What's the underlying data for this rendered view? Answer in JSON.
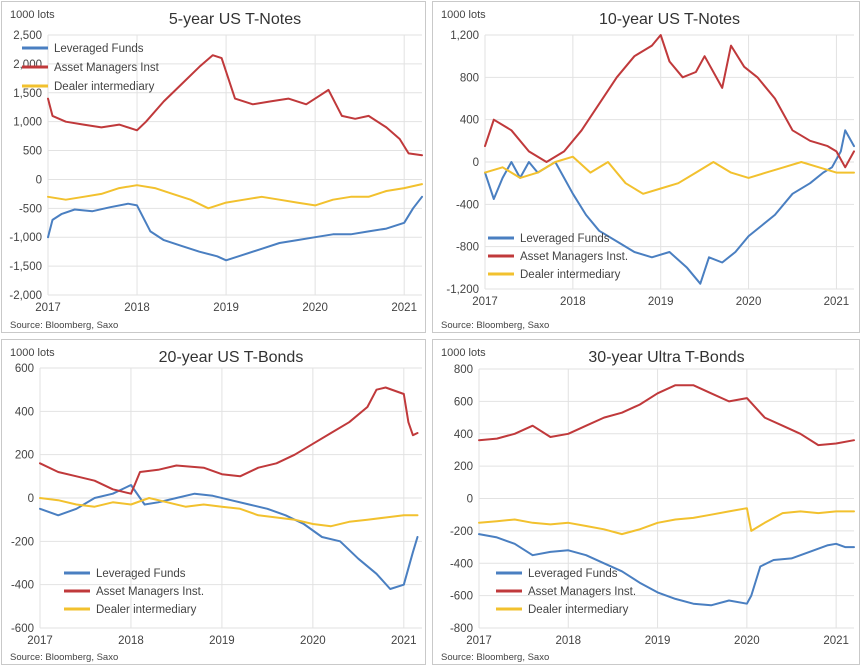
{
  "colors": {
    "leveraged": "#4a7fc1",
    "asset": "#c0393b",
    "dealer": "#f2c12e"
  },
  "chart_data": [
    {
      "type": "line",
      "title": "5-year US T-Notes",
      "ylabel": "1000 lots",
      "source": "Source: Bloomberg, Saxo",
      "ylim": [
        -2000,
        2500
      ],
      "yticks": [
        2500,
        2000,
        1500,
        1000,
        500,
        0,
        -500,
        -1000,
        -1500,
        -2000
      ],
      "ytick_labels": [
        "2,500",
        "2,000",
        "1,500",
        "1,000",
        "500",
        "0",
        "-500",
        "-1,000",
        "-1,500",
        "-2,000"
      ],
      "xlim": [
        2017,
        2021.2
      ],
      "xticks": [
        2017,
        2018,
        2019,
        2020,
        2021
      ],
      "xtick_labels": [
        "2017",
        "2018",
        "2019",
        "2020",
        "2021"
      ],
      "legend_position": "top-left",
      "series": [
        {
          "name": "Leveraged Funds",
          "color_key": "leveraged",
          "x": [
            2017.0,
            2017.05,
            2017.15,
            2017.3,
            2017.5,
            2017.7,
            2017.9,
            2018.0,
            2018.15,
            2018.3,
            2018.5,
            2018.7,
            2018.9,
            2019.0,
            2019.2,
            2019.4,
            2019.6,
            2019.8,
            2020.0,
            2020.2,
            2020.4,
            2020.6,
            2020.8,
            2021.0,
            2021.1,
            2021.2
          ],
          "y": [
            -1000,
            -700,
            -600,
            -520,
            -550,
            -480,
            -420,
            -450,
            -900,
            -1050,
            -1150,
            -1250,
            -1330,
            -1400,
            -1300,
            -1200,
            -1100,
            -1050,
            -1000,
            -950,
            -950,
            -900,
            -850,
            -750,
            -500,
            -300
          ]
        },
        {
          "name": "Asset Managers Inst",
          "color_key": "asset",
          "x": [
            2017.0,
            2017.05,
            2017.2,
            2017.4,
            2017.6,
            2017.8,
            2018.0,
            2018.1,
            2018.3,
            2018.5,
            2018.7,
            2018.85,
            2018.95,
            2019.1,
            2019.3,
            2019.5,
            2019.7,
            2019.9,
            2020.05,
            2020.15,
            2020.3,
            2020.45,
            2020.6,
            2020.8,
            2020.95,
            2021.05,
            2021.2
          ],
          "y": [
            1400,
            1100,
            1000,
            950,
            900,
            950,
            850,
            1000,
            1350,
            1650,
            1950,
            2150,
            2100,
            1400,
            1300,
            1350,
            1400,
            1300,
            1450,
            1550,
            1100,
            1050,
            1100,
            900,
            700,
            450,
            420
          ]
        },
        {
          "name": "Dealer intermediary",
          "color_key": "dealer",
          "x": [
            2017.0,
            2017.2,
            2017.4,
            2017.6,
            2017.8,
            2018.0,
            2018.2,
            2018.4,
            2018.6,
            2018.8,
            2019.0,
            2019.2,
            2019.4,
            2019.6,
            2019.8,
            2020.0,
            2020.2,
            2020.4,
            2020.6,
            2020.8,
            2021.0,
            2021.2
          ],
          "y": [
            -300,
            -350,
            -300,
            -250,
            -150,
            -100,
            -150,
            -250,
            -350,
            -500,
            -400,
            -350,
            -300,
            -350,
            -400,
            -450,
            -350,
            -300,
            -300,
            -200,
            -150,
            -80
          ]
        }
      ]
    },
    {
      "type": "line",
      "title": "10-year US T-Notes",
      "ylabel": "1000 lots",
      "source": "Source: Bloomberg, Saxo",
      "ylim": [
        -1200,
        1200
      ],
      "yticks": [
        1200,
        800,
        400,
        0,
        -400,
        -800,
        -1200
      ],
      "ytick_labels": [
        "1,200",
        "800",
        "400",
        "0",
        "-400",
        "-800",
        "-1,200"
      ],
      "xlim": [
        2017,
        2021.2
      ],
      "xticks": [
        2017,
        2018,
        2019,
        2020,
        2021
      ],
      "xtick_labels": [
        "2017",
        "2018",
        "2019",
        "2020",
        "2021"
      ],
      "legend_position": "bottom-center",
      "series": [
        {
          "name": "Leveraged Funds",
          "color_key": "leveraged",
          "x": [
            2017.0,
            2017.1,
            2017.2,
            2017.3,
            2017.4,
            2017.5,
            2017.6,
            2017.7,
            2017.8,
            2017.9,
            2018.0,
            2018.15,
            2018.3,
            2018.5,
            2018.7,
            2018.9,
            2019.1,
            2019.3,
            2019.45,
            2019.55,
            2019.7,
            2019.85,
            2020.0,
            2020.15,
            2020.3,
            2020.5,
            2020.7,
            2020.85,
            2020.95,
            2021.05,
            2021.1,
            2021.2
          ],
          "y": [
            -100,
            -350,
            -150,
            0,
            -150,
            0,
            -100,
            -50,
            0,
            -150,
            -300,
            -500,
            -650,
            -750,
            -850,
            -900,
            -850,
            -1000,
            -1150,
            -900,
            -950,
            -850,
            -700,
            -600,
            -500,
            -300,
            -200,
            -100,
            -50,
            100,
            300,
            150
          ]
        },
        {
          "name": "Asset Managers Inst.",
          "color_key": "asset",
          "x": [
            2017.0,
            2017.1,
            2017.3,
            2017.5,
            2017.7,
            2017.9,
            2018.1,
            2018.3,
            2018.5,
            2018.7,
            2018.9,
            2019.0,
            2019.1,
            2019.25,
            2019.4,
            2019.5,
            2019.7,
            2019.8,
            2019.95,
            2020.1,
            2020.3,
            2020.5,
            2020.7,
            2020.9,
            2021.0,
            2021.1,
            2021.2
          ],
          "y": [
            150,
            400,
            300,
            100,
            0,
            100,
            300,
            550,
            800,
            1000,
            1100,
            1200,
            950,
            800,
            850,
            1000,
            700,
            1100,
            900,
            800,
            600,
            300,
            200,
            150,
            100,
            -50,
            100
          ]
        },
        {
          "name": "Dealer intermediary",
          "color_key": "dealer",
          "x": [
            2017.0,
            2017.2,
            2017.4,
            2017.6,
            2017.8,
            2018.0,
            2018.2,
            2018.4,
            2018.6,
            2018.8,
            2019.0,
            2019.2,
            2019.4,
            2019.6,
            2019.8,
            2020.0,
            2020.2,
            2020.4,
            2020.6,
            2020.8,
            2021.0,
            2021.2
          ],
          "y": [
            -100,
            -50,
            -150,
            -100,
            0,
            50,
            -100,
            0,
            -200,
            -300,
            -250,
            -200,
            -100,
            0,
            -100,
            -150,
            -100,
            -50,
            0,
            -50,
            -100,
            -100
          ]
        }
      ]
    },
    {
      "type": "line",
      "title": "20-year US T-Bonds",
      "ylabel": "1000 lots",
      "source": "Source: Bloomberg, Saxo",
      "ylim": [
        -600,
        600
      ],
      "yticks": [
        600,
        400,
        200,
        0,
        -200,
        -400,
        -600
      ],
      "ytick_labels": [
        "600",
        "400",
        "200",
        "0",
        "-200",
        "-400",
        "-600"
      ],
      "xlim": [
        2017,
        2021.2
      ],
      "xticks": [
        2017,
        2018,
        2019,
        2020,
        2021
      ],
      "xtick_labels": [
        "2017",
        "2018",
        "2019",
        "2020",
        "2021"
      ],
      "legend_position": "bottom-center",
      "series": [
        {
          "name": "Leveraged Funds",
          "color_key": "leveraged",
          "x": [
            2017.0,
            2017.2,
            2017.4,
            2017.6,
            2017.8,
            2018.0,
            2018.15,
            2018.3,
            2018.5,
            2018.7,
            2018.9,
            2019.1,
            2019.3,
            2019.5,
            2019.7,
            2019.9,
            2020.1,
            2020.3,
            2020.5,
            2020.7,
            2020.85,
            2021.0,
            2021.1,
            2021.15
          ],
          "y": [
            -50,
            -80,
            -50,
            0,
            20,
            60,
            -30,
            -20,
            0,
            20,
            10,
            -10,
            -30,
            -50,
            -80,
            -120,
            -180,
            -200,
            -280,
            -350,
            -420,
            -400,
            -250,
            -180
          ]
        },
        {
          "name": "Asset Managers Inst.",
          "color_key": "asset",
          "x": [
            2017.0,
            2017.2,
            2017.4,
            2017.6,
            2017.8,
            2018.0,
            2018.1,
            2018.3,
            2018.5,
            2018.8,
            2019.0,
            2019.2,
            2019.4,
            2019.6,
            2019.8,
            2020.0,
            2020.2,
            2020.4,
            2020.6,
            2020.7,
            2020.8,
            2021.0,
            2021.05,
            2021.1,
            2021.15
          ],
          "y": [
            160,
            120,
            100,
            80,
            40,
            20,
            120,
            130,
            150,
            140,
            110,
            100,
            140,
            160,
            200,
            250,
            300,
            350,
            420,
            500,
            510,
            480,
            350,
            290,
            300
          ]
        },
        {
          "name": "Dealer intermediary",
          "color_key": "dealer",
          "x": [
            2017.0,
            2017.2,
            2017.4,
            2017.6,
            2017.8,
            2018.0,
            2018.2,
            2018.4,
            2018.6,
            2018.8,
            2019.0,
            2019.2,
            2019.4,
            2019.6,
            2019.8,
            2020.0,
            2020.2,
            2020.4,
            2020.6,
            2020.8,
            2021.0,
            2021.15
          ],
          "y": [
            0,
            -10,
            -30,
            -40,
            -20,
            -30,
            0,
            -20,
            -40,
            -30,
            -40,
            -50,
            -80,
            -90,
            -100,
            -120,
            -130,
            -110,
            -100,
            -90,
            -80,
            -80
          ]
        }
      ]
    },
    {
      "type": "line",
      "title": "30-year Ultra T-Bonds",
      "ylabel": "1000 lots",
      "source": "Source: Bloomberg, Saxo",
      "ylim": [
        -800,
        800
      ],
      "yticks": [
        800,
        600,
        400,
        200,
        0,
        -200,
        -400,
        -600,
        -800
      ],
      "ytick_labels": [
        "800",
        "600",
        "400",
        "200",
        "0",
        "-200",
        "-400",
        "-600",
        "-800"
      ],
      "xlim": [
        2017,
        2021.2
      ],
      "xticks": [
        2017,
        2018,
        2019,
        2020,
        2021
      ],
      "xtick_labels": [
        "2017",
        "2018",
        "2019",
        "2020",
        "2021"
      ],
      "legend_position": "bottom-center",
      "series": [
        {
          "name": "Leveraged Funds",
          "color_key": "leveraged",
          "x": [
            2017.0,
            2017.2,
            2017.4,
            2017.6,
            2017.8,
            2018.0,
            2018.2,
            2018.4,
            2018.6,
            2018.8,
            2019.0,
            2019.2,
            2019.4,
            2019.6,
            2019.8,
            2020.0,
            2020.05,
            2020.15,
            2020.3,
            2020.5,
            2020.7,
            2020.9,
            2021.0,
            2021.1,
            2021.2
          ],
          "y": [
            -220,
            -240,
            -280,
            -350,
            -330,
            -320,
            -350,
            -400,
            -450,
            -520,
            -580,
            -620,
            -650,
            -660,
            -630,
            -650,
            -600,
            -420,
            -380,
            -370,
            -330,
            -290,
            -280,
            -300,
            -300
          ]
        },
        {
          "name": "Asset Managers Inst.",
          "color_key": "asset",
          "x": [
            2017.0,
            2017.2,
            2017.4,
            2017.6,
            2017.8,
            2018.0,
            2018.2,
            2018.4,
            2018.6,
            2018.8,
            2019.0,
            2019.2,
            2019.4,
            2019.6,
            2019.8,
            2020.0,
            2020.2,
            2020.4,
            2020.6,
            2020.8,
            2021.0,
            2021.2
          ],
          "y": [
            360,
            370,
            400,
            450,
            380,
            400,
            450,
            500,
            530,
            580,
            650,
            700,
            700,
            650,
            600,
            620,
            500,
            450,
            400,
            330,
            340,
            360
          ]
        },
        {
          "name": "Dealer intermediary",
          "color_key": "dealer",
          "x": [
            2017.0,
            2017.2,
            2017.4,
            2017.6,
            2017.8,
            2018.0,
            2018.2,
            2018.4,
            2018.6,
            2018.8,
            2019.0,
            2019.2,
            2019.4,
            2019.6,
            2019.8,
            2020.0,
            2020.05,
            2020.2,
            2020.4,
            2020.6,
            2020.8,
            2021.0,
            2021.2
          ],
          "y": [
            -150,
            -140,
            -130,
            -150,
            -160,
            -150,
            -170,
            -190,
            -220,
            -190,
            -150,
            -130,
            -120,
            -100,
            -80,
            -60,
            -200,
            -150,
            -90,
            -80,
            -90,
            -80,
            -80
          ]
        }
      ]
    }
  ]
}
